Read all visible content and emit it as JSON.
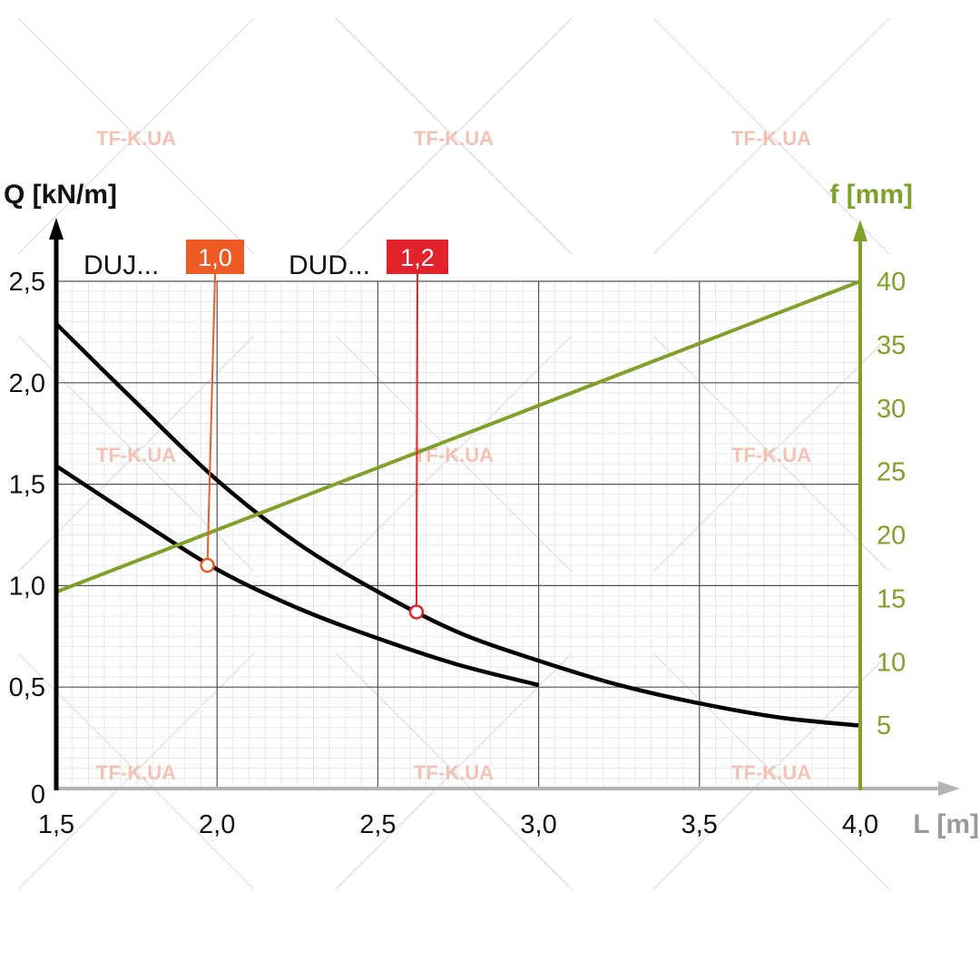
{
  "watermark": "TF-K.UA",
  "chart_data": {
    "type": "line",
    "left_axis_title": "Q [kN/m]",
    "right_axis_title": "f [mm]",
    "x_axis_title": "L [m]",
    "xlim": [
      1.5,
      4.0
    ],
    "ylim_left": [
      0,
      2.5
    ],
    "ylim_right": [
      0,
      40
    ],
    "x_ticks": [
      "1,5",
      "2,0",
      "2,5",
      "3,0",
      "3,5",
      "4,0"
    ],
    "x_tick_values": [
      1.5,
      2.0,
      2.5,
      3.0,
      3.5,
      4.0
    ],
    "left_ticks": [
      "0",
      "0,5",
      "1,0",
      "1,5",
      "2,0",
      "2,5"
    ],
    "left_tick_values": [
      0,
      0.5,
      1.0,
      1.5,
      2.0,
      2.5
    ],
    "right_ticks": [
      "5",
      "10",
      "15",
      "20",
      "25",
      "30",
      "35",
      "40"
    ],
    "right_tick_values": [
      5,
      10,
      15,
      20,
      25,
      30,
      35,
      40
    ],
    "grid": true,
    "series": [
      {
        "name": "DUJ...",
        "axis": "left",
        "color": "#000000",
        "x": [
          1.5,
          1.75,
          2.0,
          2.25,
          2.5,
          2.75,
          3.0
        ],
        "y": [
          1.59,
          1.33,
          1.08,
          0.89,
          0.74,
          0.61,
          0.51
        ]
      },
      {
        "name": "DUD...",
        "axis": "left",
        "color": "#000000",
        "x": [
          1.5,
          1.75,
          2.0,
          2.25,
          2.5,
          2.75,
          3.0,
          3.25,
          3.5,
          3.75,
          4.0
        ],
        "y": [
          2.29,
          1.9,
          1.52,
          1.21,
          0.97,
          0.77,
          0.63,
          0.51,
          0.42,
          0.35,
          0.31
        ]
      },
      {
        "name": "f",
        "axis": "right",
        "color": "#7fa12a",
        "x": [
          1.5,
          4.0
        ],
        "y": [
          15.5,
          40
        ]
      }
    ],
    "markers": [
      {
        "label": "1,0",
        "x": 1.97,
        "y": 1.1,
        "color": "#ee5a24"
      },
      {
        "label": "1,2",
        "x": 2.62,
        "y": 0.87,
        "color": "#e3232b"
      }
    ]
  }
}
